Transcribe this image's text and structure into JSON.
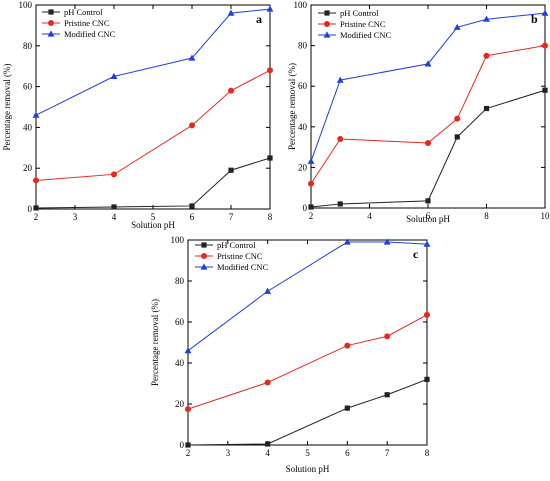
{
  "chart_data": [
    {
      "type": "line",
      "panel": "a",
      "xlabel": "Solution pH",
      "ylabel": "Percentage removal (%)",
      "xlim": [
        2,
        8
      ],
      "ylim": [
        0,
        100
      ],
      "xticks": [
        2,
        3,
        4,
        5,
        6,
        7,
        8
      ],
      "yticks": [
        0,
        20,
        40,
        60,
        80,
        100
      ],
      "legend_position": "top-left",
      "series": [
        {
          "name": "pH Control",
          "color": "#222222",
          "marker": "square",
          "x": [
            2,
            4,
            6,
            7,
            8
          ],
          "y": [
            0.5,
            1,
            1.5,
            19,
            25
          ]
        },
        {
          "name": "Pristine CNC",
          "color": "#e8281e",
          "marker": "circle",
          "x": [
            2,
            4,
            6,
            7,
            8
          ],
          "y": [
            14,
            17,
            41,
            58,
            68
          ]
        },
        {
          "name": "Modified CNC",
          "color": "#1f3fe0",
          "marker": "triangle",
          "x": [
            2,
            4,
            6,
            7,
            8
          ],
          "y": [
            46,
            65,
            74,
            96,
            98
          ]
        }
      ]
    },
    {
      "type": "line",
      "panel": "b",
      "xlabel": "Solution pH",
      "ylabel": "Percentage removal (%)",
      "xlim": [
        2,
        10
      ],
      "ylim": [
        0,
        100
      ],
      "xticks": [
        2,
        4,
        6,
        8,
        10
      ],
      "yticks": [
        0,
        20,
        40,
        60,
        80,
        100
      ],
      "legend_position": "top-left",
      "series": [
        {
          "name": "pH Control",
          "color": "#222222",
          "marker": "square",
          "x": [
            2,
            3,
            6,
            7,
            8,
            10
          ],
          "y": [
            0.5,
            2,
            3.5,
            35,
            49,
            58
          ]
        },
        {
          "name": "Pristine CNC",
          "color": "#e8281e",
          "marker": "circle",
          "x": [
            2,
            3,
            6,
            7,
            8,
            10
          ],
          "y": [
            12,
            34,
            32,
            44,
            75,
            80
          ]
        },
        {
          "name": "Modified CNC",
          "color": "#1f3fe0",
          "marker": "triangle",
          "x": [
            2,
            3,
            6,
            7,
            8,
            10
          ],
          "y": [
            23,
            63,
            71,
            89,
            93,
            96
          ]
        }
      ]
    },
    {
      "type": "line",
      "panel": "c",
      "xlabel": "Solution pH",
      "ylabel": "Percentage removal (%)",
      "xlim": [
        2,
        8
      ],
      "ylim": [
        0,
        100
      ],
      "xticks": [
        2,
        3,
        4,
        5,
        6,
        7,
        8
      ],
      "yticks": [
        0,
        20,
        40,
        60,
        80,
        100
      ],
      "legend_position": "top-left",
      "series": [
        {
          "name": "pH Control",
          "color": "#222222",
          "marker": "square",
          "x": [
            2,
            4,
            6,
            7,
            8
          ],
          "y": [
            0,
            0.5,
            18,
            24.5,
            32
          ]
        },
        {
          "name": "Pristine CNC",
          "color": "#e8281e",
          "marker": "circle",
          "x": [
            2,
            4,
            6,
            7,
            8
          ],
          "y": [
            17.5,
            30.5,
            48.5,
            53,
            63.5
          ]
        },
        {
          "name": "Modified CNC",
          "color": "#1f3fe0",
          "marker": "triangle",
          "x": [
            2,
            4,
            6,
            7,
            8
          ],
          "y": [
            46,
            75,
            99,
            99,
            98
          ]
        }
      ]
    }
  ]
}
